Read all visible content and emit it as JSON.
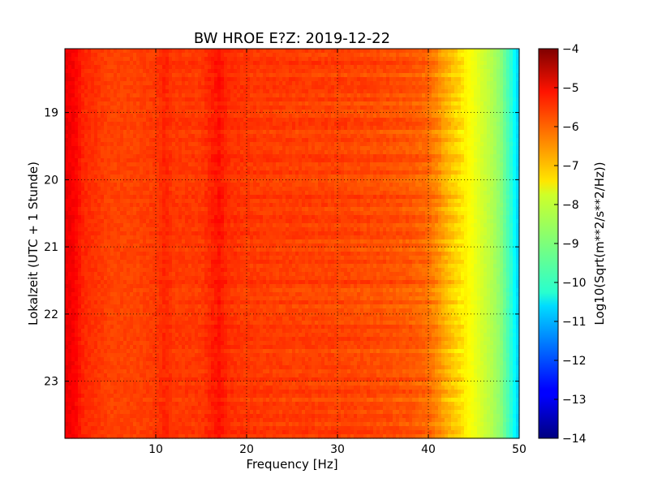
{
  "chart_data": {
    "type": "heatmap",
    "title": "BW HROE E?Z: 2019-12-22",
    "xlabel": "Frequency [Hz]",
    "ylabel": "Lokalzeit (UTC + 1 Stunde)",
    "xlim": [
      0,
      50
    ],
    "ylim": [
      18.05,
      23.85
    ],
    "y_inverted": true,
    "x_ticks": [
      10,
      20,
      30,
      40,
      50
    ],
    "x_tick_labels": [
      "10",
      "20",
      "30",
      "40",
      "50"
    ],
    "y_ticks": [
      19,
      20,
      21,
      22,
      23
    ],
    "y_tick_labels": [
      "19",
      "20",
      "21",
      "22",
      "23"
    ],
    "grid": true,
    "colormap": "jet",
    "colorbar": {
      "label": "Log10(Sqrt(m**2/s**2/Hz))",
      "range": [
        -14,
        -4
      ],
      "ticks": [
        -4,
        -5,
        -6,
        -7,
        -8,
        -9,
        -10,
        -11,
        -12,
        -13,
        -14
      ],
      "tick_labels": [
        "−4",
        "−5",
        "−6",
        "−7",
        "−8",
        "−9",
        "−10",
        "−11",
        "−12",
        "−13",
        "−14"
      ]
    },
    "spectrum_profile": {
      "frequency_hz": [
        0,
        1,
        2,
        5,
        8,
        10,
        11,
        12,
        15,
        16.5,
        17,
        18,
        20,
        25,
        30,
        35,
        38,
        40,
        41,
        42,
        43,
        44,
        45,
        46,
        47,
        48,
        49,
        50
      ],
      "log10_amplitude": [
        -5.1,
        -5.2,
        -5.6,
        -5.9,
        -5.9,
        -5.8,
        -5.6,
        -5.8,
        -5.8,
        -5.5,
        -5.4,
        -5.7,
        -5.8,
        -5.85,
        -5.9,
        -6.0,
        -6.1,
        -6.3,
        -6.6,
        -7.0,
        -7.3,
        -7.6,
        -7.9,
        -8.2,
        -8.5,
        -8.9,
        -9.7,
        -10.8
      ]
    }
  }
}
